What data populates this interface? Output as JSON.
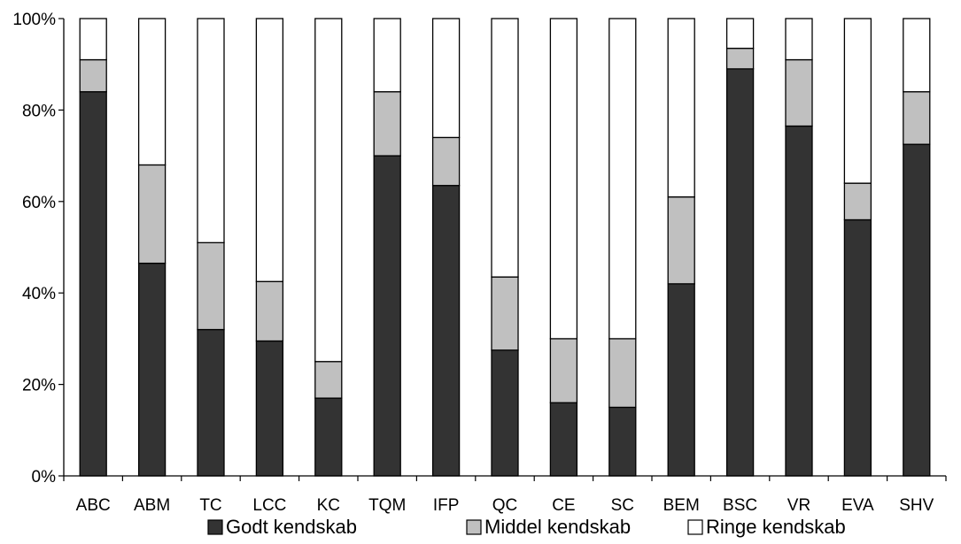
{
  "chart_data": {
    "type": "bar",
    "stacked": true,
    "percent_stacked": true,
    "title": "",
    "xlabel": "",
    "ylabel": "",
    "ylim": [
      0,
      100
    ],
    "y_ticks": [
      "0%",
      "20%",
      "40%",
      "60%",
      "80%",
      "100%"
    ],
    "grid": false,
    "legend_position": "bottom",
    "categories": [
      "ABC",
      "ABM",
      "TC",
      "LCC",
      "KC",
      "TQM",
      "IFP",
      "QC",
      "CE",
      "SC",
      "BEM",
      "BSC",
      "VR",
      "EVA",
      "SHV"
    ],
    "series": [
      {
        "name": "Godt kendskab",
        "color": "#333333",
        "values": [
          84,
          46.5,
          32,
          29.5,
          17,
          70,
          63.5,
          27.5,
          16,
          15,
          42,
          89,
          76.5,
          56,
          72.5
        ]
      },
      {
        "name": "Middel kendskab",
        "color": "#c0c0c0",
        "values": [
          7,
          21.5,
          19,
          13,
          8,
          14,
          10.5,
          16,
          14,
          15,
          19,
          4.5,
          14.5,
          8,
          11.5
        ]
      },
      {
        "name": "Ringe kendskab",
        "color": "#ffffff",
        "values": [
          9,
          32,
          49,
          57.5,
          75,
          16,
          26,
          56.5,
          70,
          70,
          39,
          6.5,
          9,
          36,
          16
        ]
      }
    ]
  }
}
